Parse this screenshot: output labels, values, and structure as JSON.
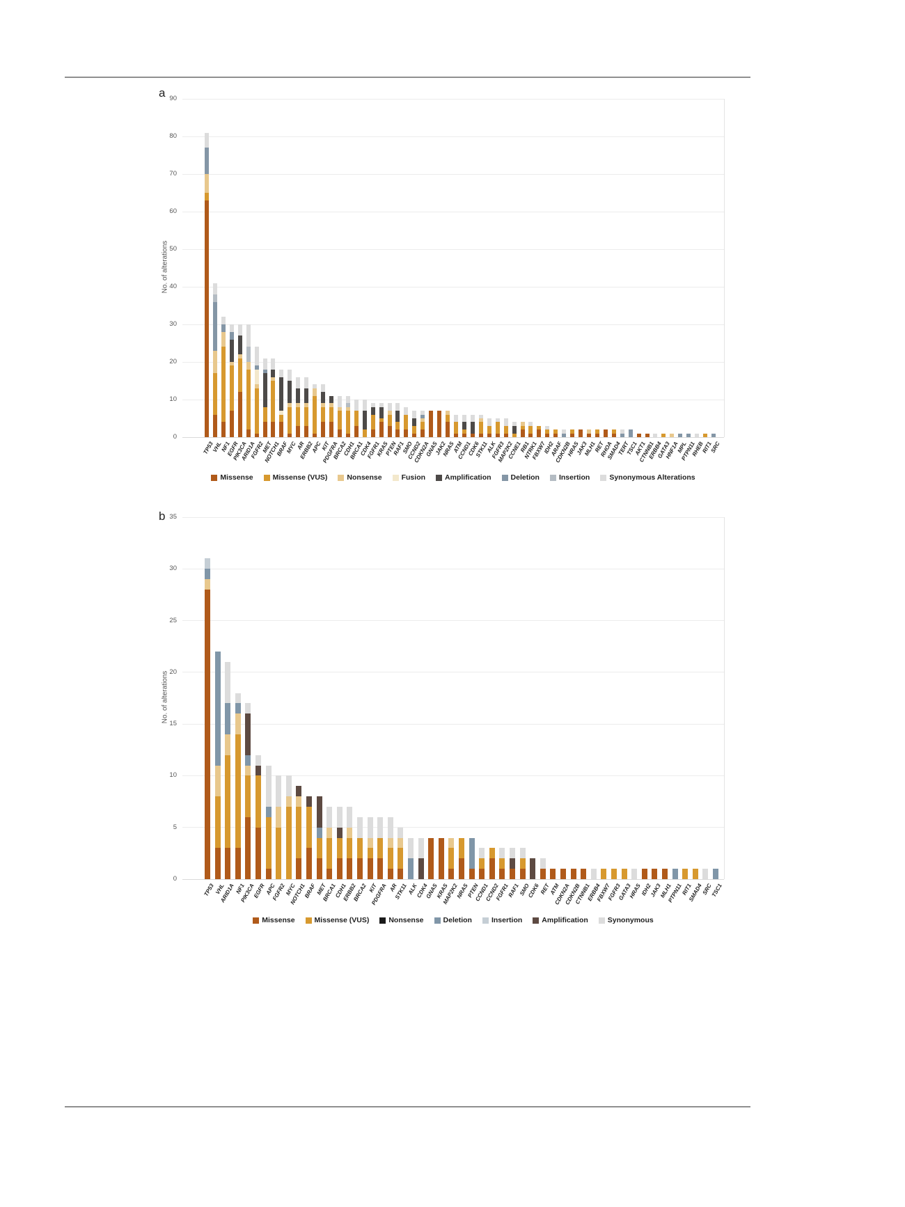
{
  "figure": {
    "top_rule": true,
    "bottom_rule": true
  },
  "chart_data": [
    {
      "type": "bar",
      "stacked": true,
      "panel_label": "a",
      "title": "",
      "xlabel": "",
      "ylabel": "No. of alterations",
      "ylim": [
        0,
        90
      ],
      "ytick_step": 10,
      "grid": "horizontal",
      "legend_position": "bottom",
      "categories": [
        "TP53",
        "VHL",
        "NF1",
        "EGFR",
        "PIK3CA",
        "ARID1A",
        "FGFR2",
        "MET",
        "NOTCH1",
        "BRAF",
        "MYC",
        "AR",
        "ERBB2",
        "APC",
        "KIT",
        "PDGFRA",
        "BRCA2",
        "CDH1",
        "BRCA1",
        "CDK4",
        "FGFR1",
        "KRAS",
        "PTEN",
        "RAF1",
        "SMO",
        "CCND2",
        "CDKN2A",
        "GNAS",
        "JAK2",
        "NRAS",
        "ATM",
        "CCND1",
        "CDK6",
        "STK11",
        "ALK",
        "FGFR3",
        "MAP2K2",
        "CCNE1",
        "RB1",
        "NTRK1",
        "FBXW7",
        "IDH2",
        "ARAF",
        "CDKN2B",
        "HRAS",
        "JAK3",
        "MLH1",
        "RET",
        "RHOA",
        "SMAD4",
        "TERT",
        "TSC1",
        "AKT1",
        "CTNNB1",
        "ERBB4",
        "GATA3",
        "HNF1A",
        "MPL",
        "PTPN11",
        "RHEB",
        "RIT1",
        "SRC"
      ],
      "series": [
        {
          "name": "Missense",
          "color": "#b05a1a",
          "values": [
            63,
            6,
            4,
            7,
            12,
            2,
            1,
            4,
            4,
            4,
            1,
            3,
            3,
            1,
            4,
            4,
            2,
            1,
            3,
            0,
            2,
            4,
            3,
            2,
            2,
            1,
            2,
            7,
            7,
            4,
            1,
            1,
            1,
            1,
            1,
            1,
            1,
            0,
            2,
            1,
            2,
            1,
            1,
            0,
            1,
            2,
            1,
            1,
            2,
            1,
            0,
            0,
            1,
            1,
            0,
            0,
            0,
            0,
            0,
            0,
            0,
            0
          ]
        },
        {
          "name": "Missense (VUS)",
          "color": "#d7992f",
          "values": [
            2,
            11,
            20,
            12,
            9,
            16,
            12,
            4,
            11,
            2,
            7,
            5,
            5,
            10,
            4,
            4,
            5,
            6,
            4,
            2,
            4,
            1,
            3,
            2,
            4,
            2,
            2,
            0,
            0,
            2,
            3,
            1,
            0,
            3,
            2,
            3,
            2,
            1,
            1,
            2,
            1,
            1,
            1,
            0,
            1,
            0,
            0,
            1,
            0,
            1,
            0,
            0,
            0,
            0,
            0,
            1,
            0,
            0,
            0,
            0,
            1,
            0
          ]
        },
        {
          "name": "Nonsense",
          "color": "#e8c88d",
          "values": [
            5,
            6,
            4,
            1,
            1,
            2,
            1,
            0,
            1,
            0,
            1,
            1,
            1,
            2,
            1,
            1,
            1,
            1,
            0,
            0,
            0,
            0,
            1,
            0,
            0,
            0,
            1,
            0,
            0,
            1,
            0,
            0,
            0,
            1,
            0,
            0,
            0,
            0,
            1,
            0,
            0,
            0,
            0,
            0,
            0,
            0,
            1,
            0,
            0,
            0,
            0,
            0,
            0,
            0,
            0,
            0,
            1,
            0,
            0,
            0,
            0,
            0
          ]
        },
        {
          "name": "Fusion",
          "color": "#f3e8cc",
          "values": [
            0,
            0,
            0,
            0,
            0,
            0,
            4,
            0,
            0,
            1,
            0,
            0,
            0,
            0,
            0,
            0,
            0,
            0,
            0,
            0,
            0,
            0,
            0,
            0,
            0,
            0,
            0,
            0,
            0,
            0,
            0,
            0,
            0,
            0,
            0,
            0,
            0,
            0,
            0,
            0,
            0,
            0,
            0,
            0,
            0,
            0,
            0,
            0,
            0,
            0,
            0,
            0,
            0,
            0,
            0,
            0,
            0,
            0,
            0,
            0,
            0,
            0
          ]
        },
        {
          "name": "Amplification",
          "color": "#4d4a48",
          "values": [
            0,
            0,
            0,
            6,
            5,
            0,
            0,
            9,
            2,
            9,
            6,
            4,
            4,
            0,
            3,
            2,
            0,
            0,
            0,
            5,
            2,
            3,
            0,
            3,
            0,
            2,
            0,
            0,
            0,
            0,
            0,
            2,
            3,
            0,
            0,
            0,
            0,
            2,
            0,
            0,
            0,
            0,
            0,
            0,
            0,
            0,
            0,
            0,
            0,
            0,
            0,
            0,
            0,
            0,
            0,
            0,
            0,
            0,
            0,
            0,
            0,
            0
          ]
        },
        {
          "name": "Deletion",
          "color": "#8496a6",
          "values": [
            7,
            13,
            2,
            2,
            0,
            0,
            1,
            1,
            0,
            0,
            0,
            0,
            0,
            0,
            0,
            0,
            0,
            0,
            0,
            0,
            0,
            0,
            0,
            0,
            0,
            0,
            1,
            0,
            0,
            0,
            0,
            0,
            0,
            0,
            0,
            0,
            0,
            0,
            0,
            0,
            0,
            0,
            0,
            1,
            0,
            0,
            0,
            0,
            0,
            0,
            1,
            2,
            0,
            0,
            0,
            0,
            0,
            1,
            1,
            0,
            0,
            1
          ]
        },
        {
          "name": "Insertion",
          "color": "#b4bcc3",
          "values": [
            0,
            2,
            0,
            0,
            0,
            4,
            0,
            0,
            0,
            0,
            0,
            0,
            0,
            0,
            0,
            0,
            0,
            1,
            0,
            0,
            0,
            0,
            0,
            0,
            0,
            0,
            0,
            0,
            0,
            0,
            0,
            0,
            0,
            0,
            0,
            0,
            0,
            0,
            0,
            0,
            0,
            0,
            0,
            0,
            0,
            0,
            0,
            0,
            0,
            0,
            0,
            0,
            0,
            0,
            0,
            0,
            0,
            0,
            0,
            0,
            0,
            0
          ]
        },
        {
          "name": "Synonymous Alterations",
          "color": "#dcdcdc",
          "values": [
            4,
            3,
            2,
            2,
            3,
            6,
            5,
            3,
            3,
            2,
            3,
            3,
            3,
            1,
            2,
            0,
            3,
            2,
            3,
            3,
            1,
            1,
            2,
            2,
            2,
            2,
            1,
            0,
            0,
            0,
            2,
            2,
            2,
            1,
            2,
            1,
            2,
            1,
            0,
            1,
            0,
            1,
            0,
            1,
            0,
            0,
            0,
            0,
            0,
            0,
            1,
            0,
            0,
            0,
            1,
            0,
            0,
            0,
            0,
            1,
            0,
            0
          ]
        }
      ]
    },
    {
      "type": "bar",
      "stacked": true,
      "panel_label": "b",
      "title": "",
      "xlabel": "",
      "ylabel": "No. of alterations",
      "ylim": [
        0,
        35
      ],
      "ytick_step": 5,
      "grid": "horizontal",
      "legend_position": "bottom",
      "categories": [
        "TP53",
        "VHL",
        "ARID1A",
        "NF1",
        "PIK3CA",
        "EGFR",
        "APC",
        "FGFR2",
        "MYC",
        "NOTCH1",
        "BRAF",
        "MET",
        "BRCA1",
        "CDH1",
        "ERBB2",
        "BRCA2",
        "KIT",
        "PDGFRA",
        "AR",
        "STK11",
        "ALK",
        "CDK4",
        "GNAS",
        "KRAS",
        "MAP2K2",
        "NRAS",
        "PTEN",
        "CCND1",
        "CCND2",
        "FGFR1",
        "RAF1",
        "SMO",
        "CDK6",
        "RET",
        "ATM",
        "CDKN2A",
        "CDKN2B",
        "CTNNB1",
        "ERBB4",
        "FBXW7",
        "FGFR3",
        "GATA3",
        "HRAS",
        "IDH2",
        "JAK3",
        "MLH1",
        "PTPN11",
        "RIT1",
        "SMAD4",
        "SRC",
        "TSC1"
      ],
      "series": [
        {
          "name": "Missense",
          "color": "#b05a1a",
          "values": [
            28,
            3,
            3,
            3,
            6,
            5,
            1,
            0,
            0,
            2,
            3,
            2,
            1,
            2,
            2,
            2,
            2,
            2,
            1,
            1,
            0,
            0,
            4,
            4,
            1,
            2,
            1,
            1,
            2,
            1,
            1,
            1,
            0,
            1,
            1,
            1,
            1,
            1,
            0,
            0,
            0,
            0,
            0,
            1,
            1,
            1,
            0,
            0,
            0,
            0,
            0
          ]
        },
        {
          "name": "Missense (VUS)",
          "color": "#d7992f",
          "values": [
            0,
            5,
            9,
            11,
            4,
            5,
            5,
            5,
            7,
            5,
            4,
            2,
            3,
            2,
            2,
            2,
            1,
            2,
            2,
            2,
            0,
            0,
            0,
            0,
            2,
            2,
            0,
            1,
            1,
            1,
            0,
            1,
            0,
            0,
            0,
            0,
            0,
            0,
            0,
            1,
            1,
            1,
            0,
            0,
            0,
            0,
            0,
            1,
            1,
            0,
            0
          ]
        },
        {
          "name": "Nonsense",
          "color": "#e8c88d",
          "legend_color": "#1a1a1a",
          "values": [
            1,
            3,
            2,
            2,
            1,
            0,
            0,
            2,
            1,
            1,
            0,
            0,
            1,
            0,
            1,
            0,
            1,
            0,
            1,
            1,
            0,
            0,
            0,
            0,
            1,
            0,
            0,
            0,
            0,
            0,
            0,
            0,
            0,
            0,
            0,
            0,
            0,
            0,
            0,
            0,
            0,
            0,
            0,
            0,
            0,
            0,
            0,
            0,
            0,
            0,
            0
          ]
        },
        {
          "name": "Deletion",
          "color": "#8096a8",
          "values": [
            1,
            11,
            3,
            1,
            1,
            0,
            1,
            0,
            0,
            0,
            0,
            1,
            0,
            0,
            0,
            0,
            0,
            0,
            0,
            0,
            2,
            0,
            0,
            0,
            0,
            0,
            3,
            0,
            0,
            0,
            0,
            0,
            0,
            0,
            0,
            0,
            0,
            0,
            0,
            0,
            0,
            0,
            0,
            0,
            0,
            0,
            1,
            0,
            0,
            0,
            1
          ]
        },
        {
          "name": "Insertion",
          "color": "#c5ced5",
          "values": [
            1,
            0,
            0,
            0,
            0,
            0,
            0,
            0,
            0,
            0,
            0,
            0,
            0,
            0,
            0,
            0,
            0,
            0,
            0,
            0,
            0,
            0,
            0,
            0,
            0,
            0,
            0,
            0,
            0,
            0,
            0,
            0,
            0,
            0,
            0,
            0,
            0,
            0,
            0,
            0,
            0,
            0,
            0,
            0,
            0,
            0,
            0,
            0,
            0,
            0,
            0
          ]
        },
        {
          "name": "Amplification",
          "color": "#5d4a42",
          "values": [
            0,
            0,
            0,
            0,
            4,
            1,
            0,
            0,
            0,
            1,
            1,
            3,
            0,
            1,
            0,
            0,
            0,
            0,
            0,
            0,
            0,
            2,
            0,
            0,
            0,
            0,
            0,
            0,
            0,
            0,
            1,
            0,
            2,
            0,
            0,
            0,
            0,
            0,
            0,
            0,
            0,
            0,
            0,
            0,
            0,
            0,
            0,
            0,
            0,
            0,
            0
          ]
        },
        {
          "name": "Synonymous",
          "color": "#dcdcdc",
          "values": [
            0,
            0,
            4,
            1,
            1,
            1,
            4,
            3,
            2,
            0,
            0,
            0,
            2,
            2,
            2,
            2,
            2,
            2,
            2,
            1,
            2,
            2,
            0,
            0,
            0,
            0,
            0,
            1,
            0,
            1,
            1,
            1,
            0,
            1,
            0,
            0,
            0,
            0,
            1,
            0,
            0,
            0,
            1,
            0,
            0,
            0,
            0,
            0,
            0,
            1,
            0
          ]
        }
      ]
    }
  ]
}
